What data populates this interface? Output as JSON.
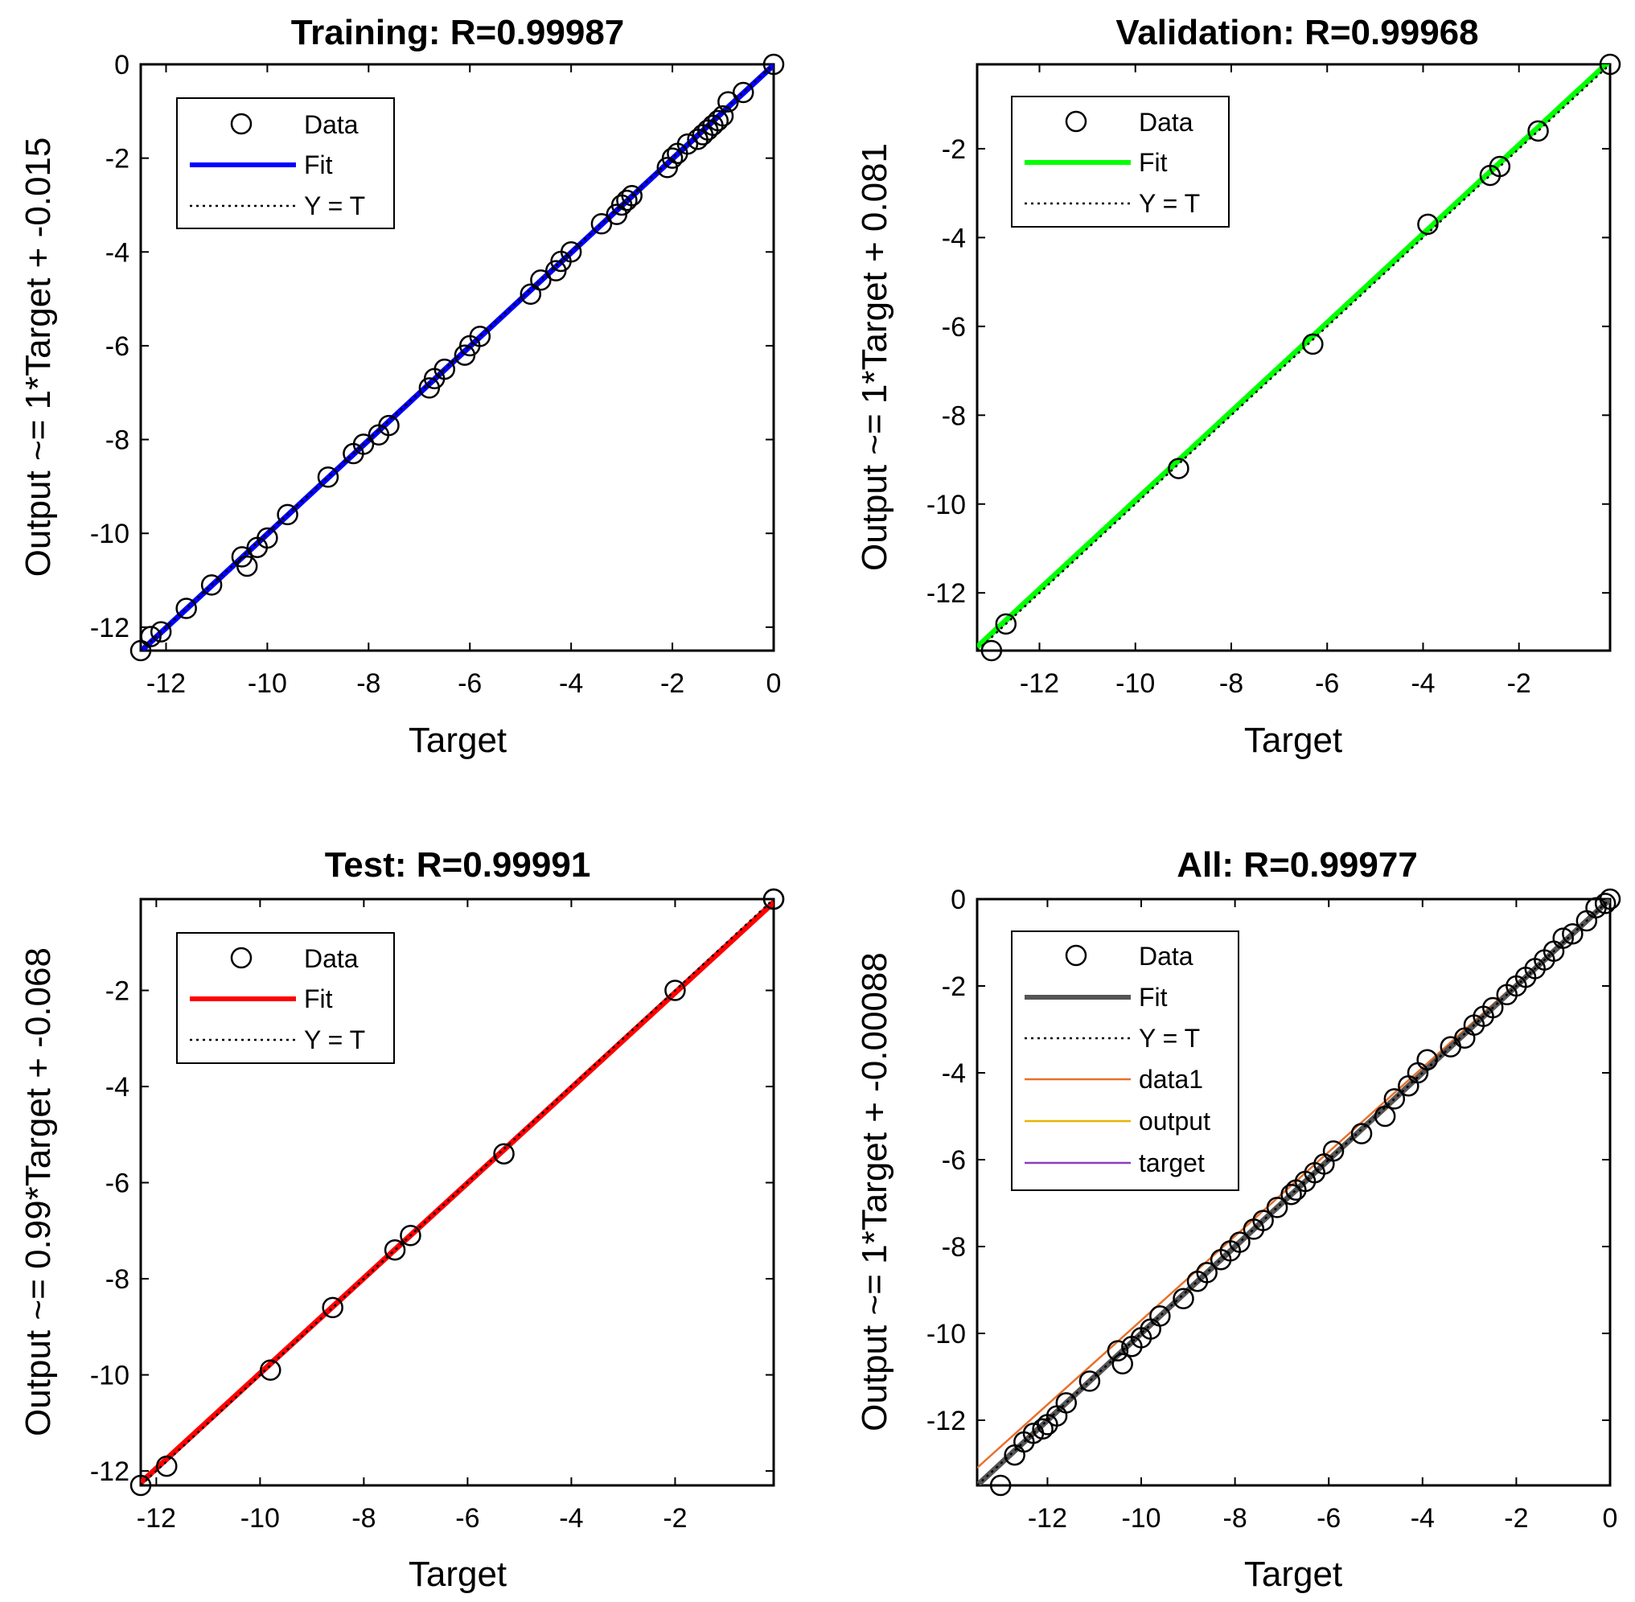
{
  "chart_data": [
    {
      "type": "scatter",
      "title": "Training: R=0.99987",
      "xlabel": "Target",
      "ylabel": "Output ~= 1*Target + -0.015",
      "xlim": [
        -12.5,
        0
      ],
      "ylim": [
        -12.5,
        0
      ],
      "xticks": [
        -12,
        -10,
        -8,
        -6,
        -4,
        -2,
        0
      ],
      "yticks": [
        0,
        -2,
        -4,
        -6,
        -8,
        -10,
        -12
      ],
      "fit_color": "#0000ff",
      "fit": {
        "slope": 1,
        "intercept": -0.015
      },
      "legend_position": "top-left",
      "legend": [
        "Data",
        "Fit",
        "Y = T"
      ],
      "x": [
        -12.5,
        -12.3,
        -12.1,
        -11.6,
        -11.1,
        -10.5,
        -10.4,
        -10.2,
        -10.0,
        -9.6,
        -8.8,
        -8.3,
        -8.1,
        -7.8,
        -7.6,
        -6.8,
        -6.7,
        -6.5,
        -6.1,
        -6.0,
        -5.8,
        -4.8,
        -4.6,
        -4.3,
        -4.2,
        -4.0,
        -3.4,
        -3.1,
        -3.0,
        -2.9,
        -2.8,
        -2.1,
        -2.0,
        -1.9,
        -1.7,
        -1.5,
        -1.4,
        -1.3,
        -1.2,
        -1.1,
        -1.0,
        -0.9,
        -0.6,
        0.0
      ],
      "y": [
        -12.5,
        -12.2,
        -12.1,
        -11.6,
        -11.1,
        -10.5,
        -10.7,
        -10.3,
        -10.1,
        -9.6,
        -8.8,
        -8.3,
        -8.1,
        -7.9,
        -7.7,
        -6.9,
        -6.7,
        -6.5,
        -6.2,
        -6.0,
        -5.8,
        -4.9,
        -4.6,
        -4.4,
        -4.2,
        -4.0,
        -3.4,
        -3.2,
        -3.0,
        -2.9,
        -2.8,
        -2.2,
        -2.0,
        -1.9,
        -1.7,
        -1.6,
        -1.5,
        -1.4,
        -1.3,
        -1.2,
        -1.1,
        -0.8,
        -0.6,
        0.0
      ]
    },
    {
      "type": "scatter",
      "title": "Validation: R=0.99968",
      "xlabel": "Target",
      "ylabel": "Output ~= 1*Target + 0.081",
      "xlim": [
        -13.3,
        -0.1
      ],
      "ylim": [
        -13.3,
        -0.1
      ],
      "xticks": [
        -12,
        -10,
        -8,
        -6,
        -4,
        -2
      ],
      "yticks": [
        -2,
        -4,
        -6,
        -8,
        -10,
        -12
      ],
      "fit_color": "#00ff00",
      "fit": {
        "slope": 1,
        "intercept": 0.081
      },
      "legend_position": "top-left",
      "legend": [
        "Data",
        "Fit",
        "Y = T"
      ],
      "x": [
        -13.0,
        -12.7,
        -9.1,
        -6.3,
        -3.9,
        -2.6,
        -2.4,
        -1.6,
        -0.1
      ],
      "y": [
        -13.3,
        -12.7,
        -9.2,
        -6.4,
        -3.7,
        -2.6,
        -2.4,
        -1.6,
        -0.1
      ]
    },
    {
      "type": "scatter",
      "title": "Test: R=0.99991",
      "xlabel": "Target",
      "ylabel": "Output ~= 0.99*Target + -0.068",
      "xlim": [
        -12.3,
        -0.1
      ],
      "ylim": [
        -12.3,
        -0.1
      ],
      "xticks": [
        -12,
        -10,
        -8,
        -6,
        -4,
        -2
      ],
      "yticks": [
        -2,
        -4,
        -6,
        -8,
        -10,
        -12
      ],
      "fit_color": "#ff0000",
      "fit": {
        "slope": 0.99,
        "intercept": -0.068
      },
      "legend_position": "top-left",
      "legend": [
        "Data",
        "Fit",
        "Y = T"
      ],
      "x": [
        -12.3,
        -11.8,
        -9.8,
        -8.6,
        -7.4,
        -7.1,
        -5.3,
        -2.0,
        -0.1,
        -0.1
      ],
      "y": [
        -12.3,
        -11.9,
        -9.9,
        -8.6,
        -7.4,
        -7.1,
        -5.4,
        -2.0,
        -0.1,
        -0.1
      ]
    },
    {
      "type": "scatter",
      "title": "All: R=0.99977",
      "xlabel": "Target",
      "ylabel": "Output ~= 1*Target + -0.00088",
      "xlim": [
        -13.5,
        0
      ],
      "ylim": [
        -13.5,
        0
      ],
      "xticks": [
        -12,
        -10,
        -8,
        -6,
        -4,
        -2,
        0
      ],
      "yticks": [
        0,
        -2,
        -4,
        -6,
        -8,
        -10,
        -12
      ],
      "fit_color": "#555555",
      "fit": {
        "slope": 1,
        "intercept": -0.00088
      },
      "extra_lines": [
        {
          "name": "data1",
          "color": "#e8702a",
          "slope": 0.97,
          "intercept": 0.0
        },
        {
          "name": "output",
          "color": "#e8b400",
          "slope": 1,
          "intercept": 0.0
        },
        {
          "name": "target",
          "color": "#8b3fbf",
          "slope": 1,
          "intercept": 0.0
        }
      ],
      "legend_position": "top-left",
      "legend": [
        "Data",
        "Fit",
        "Y = T",
        "data1",
        "output",
        "target"
      ],
      "x": [
        -13.0,
        -12.7,
        -12.5,
        -12.3,
        -12.1,
        -12.0,
        -11.8,
        -11.6,
        -11.1,
        -10.5,
        -10.4,
        -10.2,
        -10.0,
        -9.8,
        -9.6,
        -9.1,
        -8.8,
        -8.6,
        -8.3,
        -8.1,
        -7.9,
        -7.6,
        -7.4,
        -7.1,
        -6.8,
        -6.7,
        -6.5,
        -6.3,
        -6.1,
        -5.9,
        -5.3,
        -4.8,
        -4.6,
        -4.3,
        -4.1,
        -3.9,
        -3.4,
        -3.1,
        -2.9,
        -2.7,
        -2.5,
        -2.2,
        -2.0,
        -1.8,
        -1.6,
        -1.4,
        -1.2,
        -1.0,
        -0.8,
        -0.5,
        -0.3,
        -0.1,
        0.0
      ],
      "y": [
        -13.5,
        -12.8,
        -12.5,
        -12.3,
        -12.2,
        -12.1,
        -11.9,
        -11.6,
        -11.1,
        -10.4,
        -10.7,
        -10.3,
        -10.1,
        -9.9,
        -9.6,
        -9.2,
        -8.8,
        -8.6,
        -8.3,
        -8.1,
        -7.9,
        -7.6,
        -7.4,
        -7.1,
        -6.8,
        -6.7,
        -6.5,
        -6.3,
        -6.1,
        -5.8,
        -5.4,
        -5.0,
        -4.6,
        -4.3,
        -4.0,
        -3.7,
        -3.4,
        -3.2,
        -2.9,
        -2.7,
        -2.5,
        -2.2,
        -2.0,
        -1.8,
        -1.6,
        -1.4,
        -1.2,
        -0.9,
        -0.8,
        -0.5,
        -0.2,
        -0.1,
        0.0
      ]
    }
  ]
}
